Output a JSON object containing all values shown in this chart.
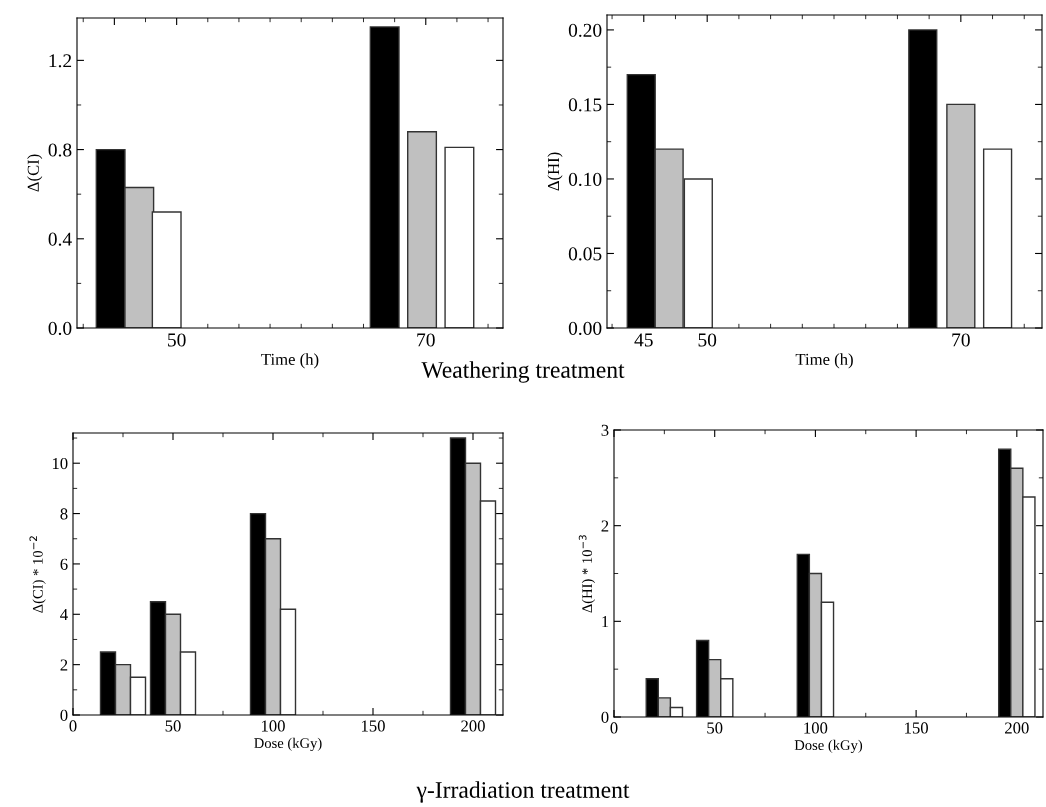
{
  "chart_data": [
    {
      "type": "bar",
      "ylabel": "Δ(CI)",
      "xlabel": "Time (h)",
      "annotations": [
        "Weathering treatment"
      ],
      "xlim": [
        42,
        76.2
      ],
      "xticks": [
        {
          "value": 45,
          "label": null
        },
        50,
        70
      ],
      "ylim": [
        0,
        1.39
      ],
      "yticks": [
        {
          "value": 0,
          "label": "0.0"
        },
        0.4,
        0.8,
        1.2
      ],
      "grid": false,
      "legend": false,
      "series": [
        {
          "color": "#000000",
          "x": [
            44.7,
            66.7
          ],
          "values": [
            0.8,
            1.35
          ]
        },
        {
          "color": "#c0c0c0",
          "x": [
            47.0,
            69.7
          ],
          "values": [
            0.63,
            0.88
          ]
        },
        {
          "color": "#ffffff",
          "x": [
            49.2,
            72.7
          ],
          "values": [
            0.52,
            0.81
          ]
        }
      ]
    },
    {
      "type": "bar",
      "ylabel": "Δ(HI)",
      "xlabel": "Time (h)",
      "xlim": [
        42.1,
        76.4
      ],
      "xticks": [
        45,
        50,
        70
      ],
      "ylim": [
        0,
        0.21
      ],
      "yticks": [
        {
          "value": 0,
          "label": "0.00"
        },
        0.05,
        {
          "value": 0.1,
          "label": "0.10"
        },
        0.15,
        {
          "value": 0.2,
          "label": "0.20"
        }
      ],
      "grid": false,
      "legend": false,
      "series": [
        {
          "color": "#000000",
          "x": [
            44.8,
            67.0
          ],
          "values": [
            0.17,
            0.2
          ]
        },
        {
          "color": "#c0c0c0",
          "x": [
            47.0,
            70.0
          ],
          "values": [
            0.12,
            0.15
          ]
        },
        {
          "color": "#ffffff",
          "x": [
            49.3,
            72.9
          ],
          "values": [
            0.1,
            0.12
          ]
        }
      ]
    },
    {
      "type": "bar",
      "ylabel": "Δ(CI) * 10$^{−2}$",
      "xlabel": "Dose (kGy)",
      "annotations": [
        "γ-Irradiation treatment"
      ],
      "xlim": [
        0,
        215
      ],
      "xticks": [
        0,
        50,
        100,
        150,
        200
      ],
      "ylim": [
        0,
        11.2
      ],
      "yticks": [
        0,
        2,
        4,
        6,
        8,
        10
      ],
      "grid": false,
      "legend": false,
      "series": [
        {
          "color": "#000000",
          "x": [
            17.5,
            42.5,
            92.5,
            192.5
          ],
          "values": [
            2.5,
            4.5,
            8,
            11
          ]
        },
        {
          "color": "#c0c0c0",
          "x": [
            25,
            50,
            100,
            200
          ],
          "values": [
            2.0,
            4.0,
            7,
            10
          ]
        },
        {
          "color": "#ffffff",
          "x": [
            32.5,
            57.5,
            107.5,
            207.5
          ],
          "values": [
            1.5,
            2.5,
            4.2,
            8.5
          ]
        }
      ]
    },
    {
      "type": "bar",
      "ylabel": "Δ(HI) * 10$^{−3}$",
      "xlabel": "Dose (kGy)",
      "xlim": [
        0,
        213
      ],
      "xticks": [
        0,
        50,
        100,
        150,
        200
      ],
      "ylim": [
        0,
        3
      ],
      "yticks": [
        0,
        1,
        2,
        3
      ],
      "grid": false,
      "legend": false,
      "series": [
        {
          "color": "#000000",
          "x": [
            19,
            44,
            94,
            194
          ],
          "values": [
            0.4,
            0.8,
            1.7,
            2.8
          ]
        },
        {
          "color": "#c0c0c0",
          "x": [
            25,
            50,
            100,
            200
          ],
          "values": [
            0.2,
            0.6,
            1.5,
            2.6
          ]
        },
        {
          "color": "#ffffff",
          "x": [
            31,
            56,
            106,
            206
          ],
          "values": [
            0.1,
            0.4,
            1.2,
            2.3
          ]
        }
      ]
    }
  ]
}
